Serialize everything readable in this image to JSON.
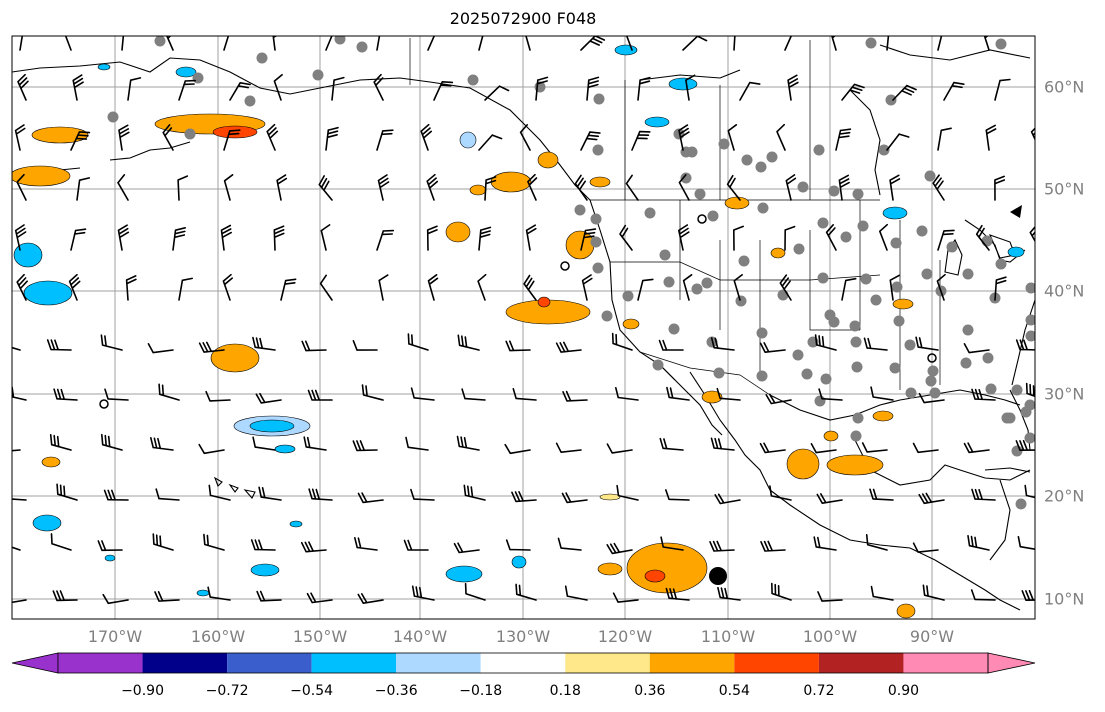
{
  "title": "2025072900 F048",
  "map": {
    "lon_labels": [
      "170°W",
      "160°W",
      "150°W",
      "140°W",
      "130°W",
      "120°W",
      "110°W",
      "100°W",
      "90°W"
    ],
    "lat_labels": [
      "60°N",
      "50°N",
      "40°N",
      "30°N",
      "20°N",
      "10°N"
    ],
    "grid": true,
    "coastline_color": "#000000",
    "gridline_color": "#a0a0a0",
    "station_marker_color": "#808080"
  },
  "colorbar": {
    "orientation": "horizontal",
    "extend": "both",
    "tick_labels": [
      "−0.90",
      "−0.72",
      "−0.54",
      "−0.36",
      "−0.18",
      "0.18",
      "0.36",
      "0.54",
      "0.72",
      "0.90"
    ],
    "colors": [
      "#9932CC",
      "#00008B",
      "#3A5FCD",
      "#00BFFF",
      "#ADD8FF",
      "#FFFFFF",
      "#FFE88A",
      "#FFA500",
      "#FF4500",
      "#B22222",
      "#FF8AB4"
    ]
  }
}
